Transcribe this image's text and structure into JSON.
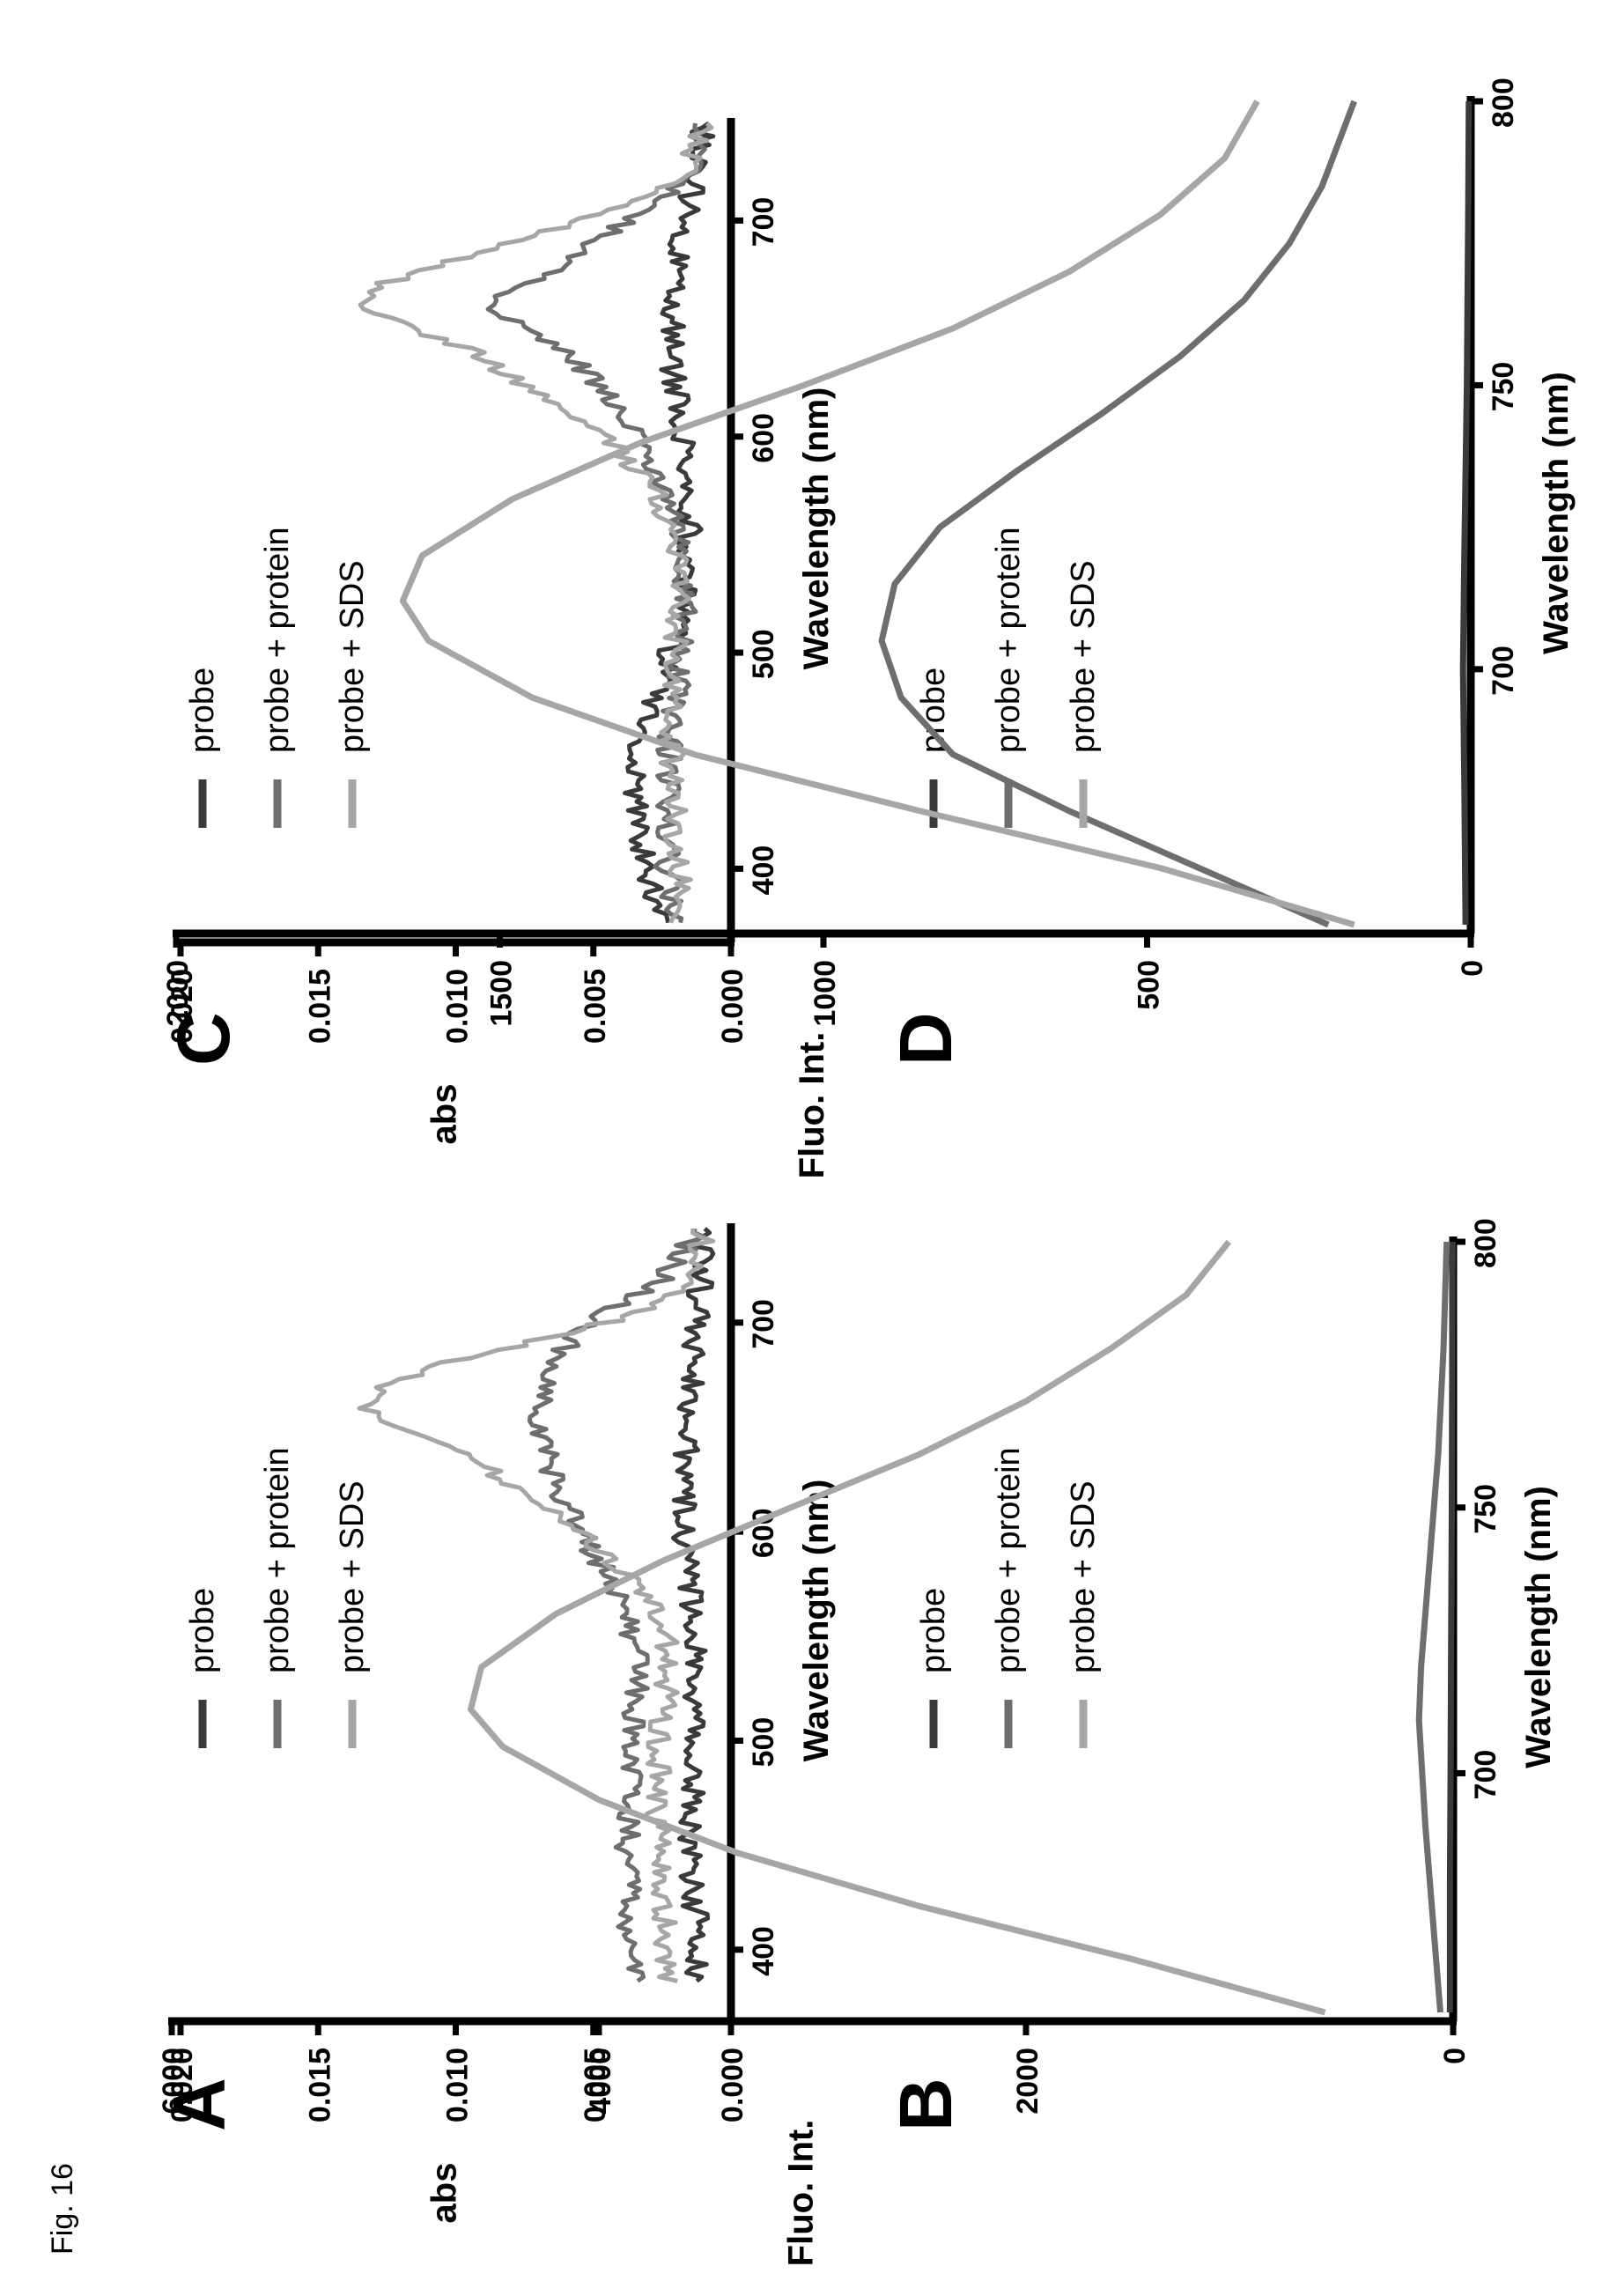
{
  "figure_label": "Fig. 16",
  "chart_data": [
    {
      "panel": "A",
      "type": "line",
      "xlabel": "Wavelength (nm)",
      "ylabel": "abs",
      "xlim": [
        370,
        745
      ],
      "ylim": [
        0,
        0.02
      ],
      "x_ticks": [
        400,
        500,
        600,
        700
      ],
      "x_tick_labels": [
        "400",
        "500",
        "600",
        "700"
      ],
      "y_ticks": [
        0,
        0.005,
        0.01,
        0.015,
        0.02
      ],
      "y_tick_labels": [
        "0.000",
        "0.005",
        "0.010",
        "0.015",
        "0.020"
      ],
      "noisy": true,
      "legend": {
        "placement": "top-left"
      },
      "series": [
        {
          "name": "probe",
          "color": "#3a3a3a",
          "x": [
            385,
            420,
            460,
            500,
            540,
            560,
            580,
            600,
            620,
            640,
            660,
            680,
            700,
            720,
            745
          ],
          "y": [
            0.0012,
            0.0013,
            0.0015,
            0.0013,
            0.0012,
            0.0013,
            0.0016,
            0.0018,
            0.0017,
            0.0016,
            0.0015,
            0.0014,
            0.0012,
            0.0011,
            0.0011
          ]
        },
        {
          "name": "probe + protein",
          "color": "#6e6e6e",
          "x": [
            385,
            420,
            460,
            500,
            540,
            560,
            580,
            600,
            620,
            640,
            660,
            680,
            700,
            720,
            745
          ],
          "y": [
            0.0035,
            0.0037,
            0.0038,
            0.0036,
            0.0034,
            0.0037,
            0.0045,
            0.0055,
            0.0063,
            0.0068,
            0.0069,
            0.0066,
            0.0052,
            0.0025,
            0.0012
          ]
        },
        {
          "name": "probe + SDS",
          "color": "#a6a6a6",
          "x": [
            385,
            420,
            460,
            500,
            540,
            560,
            580,
            600,
            620,
            640,
            650,
            660,
            670,
            680,
            690,
            700,
            710,
            720,
            745
          ],
          "y": [
            0.0022,
            0.0025,
            0.0027,
            0.0026,
            0.0022,
            0.0026,
            0.0038,
            0.0055,
            0.0075,
            0.0103,
            0.0125,
            0.0135,
            0.0128,
            0.0105,
            0.0075,
            0.0045,
            0.0025,
            0.0013,
            0.001
          ]
        }
      ]
    },
    {
      "panel": "B",
      "type": "line",
      "xlabel": "Wavelength (nm)",
      "ylabel": "Fluo. Int.",
      "xlim": [
        655,
        800
      ],
      "ylim": [
        0,
        6000
      ],
      "x_ticks": [
        700,
        750,
        800
      ],
      "x_tick_labels": [
        "700",
        "750",
        "800"
      ],
      "y_ticks": [
        0,
        2000,
        4000,
        6000
      ],
      "y_tick_labels": [
        "0",
        "2000",
        "4000",
        "6000"
      ],
      "noisy": false,
      "legend": {
        "placement": "top-right"
      },
      "series": [
        {
          "name": "probe",
          "color": "#3a3a3a",
          "x": [
            655,
            680,
            700,
            720,
            750,
            780,
            800
          ],
          "y": [
            15,
            15,
            12,
            10,
            6,
            4,
            3
          ]
        },
        {
          "name": "probe + protein",
          "color": "#6e6e6e",
          "x": [
            655,
            670,
            690,
            710,
            720,
            740,
            760,
            780,
            800
          ],
          "y": [
            60,
            90,
            130,
            160,
            150,
            110,
            70,
            45,
            30
          ]
        },
        {
          "name": "probe + SDS",
          "color": "#a6a6a6",
          "x": [
            655,
            665,
            675,
            685,
            695,
            705,
            712,
            720,
            730,
            740,
            750,
            760,
            770,
            780,
            790,
            800
          ],
          "y": [
            600,
            1500,
            2500,
            3350,
            4000,
            4450,
            4600,
            4550,
            4200,
            3700,
            3100,
            2500,
            2000,
            1600,
            1250,
            1050
          ]
        }
      ]
    },
    {
      "panel": "C",
      "type": "line",
      "xlabel": "Wavelength (nm)",
      "ylabel": "abs",
      "xlim": [
        370,
        745
      ],
      "ylim": [
        0,
        0.02
      ],
      "x_ticks": [
        400,
        500,
        600,
        700
      ],
      "x_tick_labels": [
        "400",
        "500",
        "600",
        "700"
      ],
      "y_ticks": [
        0,
        0.005,
        0.01,
        0.015,
        0.02
      ],
      "y_tick_labels": [
        "0.000",
        "0.005",
        "0.010",
        "0.015",
        "0.020"
      ],
      "noisy": true,
      "legend": {
        "placement": "top-left"
      },
      "series": [
        {
          "name": "probe",
          "color": "#3a3a3a",
          "x": [
            375,
            400,
            430,
            460,
            490,
            520,
            560,
            600,
            640,
            680,
            720,
            745
          ],
          "y": [
            0.0025,
            0.003,
            0.0035,
            0.0033,
            0.0025,
            0.0018,
            0.0015,
            0.0018,
            0.0022,
            0.002,
            0.0013,
            0.001
          ]
        },
        {
          "name": "probe + protein",
          "color": "#6e6e6e",
          "x": [
            375,
            420,
            460,
            500,
            540,
            570,
            600,
            620,
            640,
            650,
            660,
            670,
            680,
            700,
            720,
            745
          ],
          "y": [
            0.0022,
            0.0024,
            0.0022,
            0.0018,
            0.0016,
            0.0022,
            0.0035,
            0.0045,
            0.006,
            0.0072,
            0.0088,
            0.0075,
            0.0062,
            0.0038,
            0.0015,
            0.001
          ]
        },
        {
          "name": "probe + SDS",
          "color": "#a6a6a6",
          "x": [
            375,
            420,
            460,
            500,
            540,
            570,
            600,
            620,
            640,
            650,
            660,
            670,
            680,
            700,
            720,
            745
          ],
          "y": [
            0.0018,
            0.002,
            0.0022,
            0.002,
            0.0018,
            0.0025,
            0.0045,
            0.007,
            0.0095,
            0.0115,
            0.0135,
            0.0128,
            0.0105,
            0.0055,
            0.0018,
            0.001
          ]
        }
      ]
    },
    {
      "panel": "D",
      "type": "line",
      "xlabel": "Wavelength (nm)",
      "ylabel": "Fluo. Int.",
      "xlim": [
        655,
        800
      ],
      "ylim": [
        0,
        2000
      ],
      "x_ticks": [
        700,
        750,
        800
      ],
      "x_tick_labels": [
        "700",
        "750",
        "800"
      ],
      "y_ticks": [
        0,
        500,
        1000,
        1500,
        2000
      ],
      "y_tick_labels": [
        "0",
        "500",
        "1000",
        "1500",
        "2000"
      ],
      "noisy": false,
      "legend": {
        "placement": "top-right"
      },
      "series": [
        {
          "name": "probe",
          "color": "#3a3a3a",
          "x": [
            655,
            680,
            700,
            720,
            750,
            780,
            800
          ],
          "y": [
            8,
            10,
            12,
            10,
            6,
            4,
            3
          ]
        },
        {
          "name": "probe + protein",
          "color": "#6e6e6e",
          "x": [
            655,
            665,
            675,
            685,
            695,
            705,
            715,
            725,
            735,
            745,
            755,
            765,
            775,
            785,
            800
          ],
          "y": [
            220,
            420,
            620,
            800,
            880,
            910,
            890,
            820,
            700,
            570,
            450,
            350,
            280,
            230,
            180
          ]
        },
        {
          "name": "probe + SDS",
          "color": "#a6a6a6",
          "x": [
            655,
            665,
            675,
            685,
            695,
            705,
            712,
            720,
            730,
            740,
            750,
            760,
            770,
            780,
            790,
            800
          ],
          "y": [
            180,
            480,
            850,
            1200,
            1450,
            1610,
            1650,
            1620,
            1480,
            1280,
            1030,
            800,
            620,
            480,
            380,
            330
          ]
        }
      ]
    }
  ]
}
